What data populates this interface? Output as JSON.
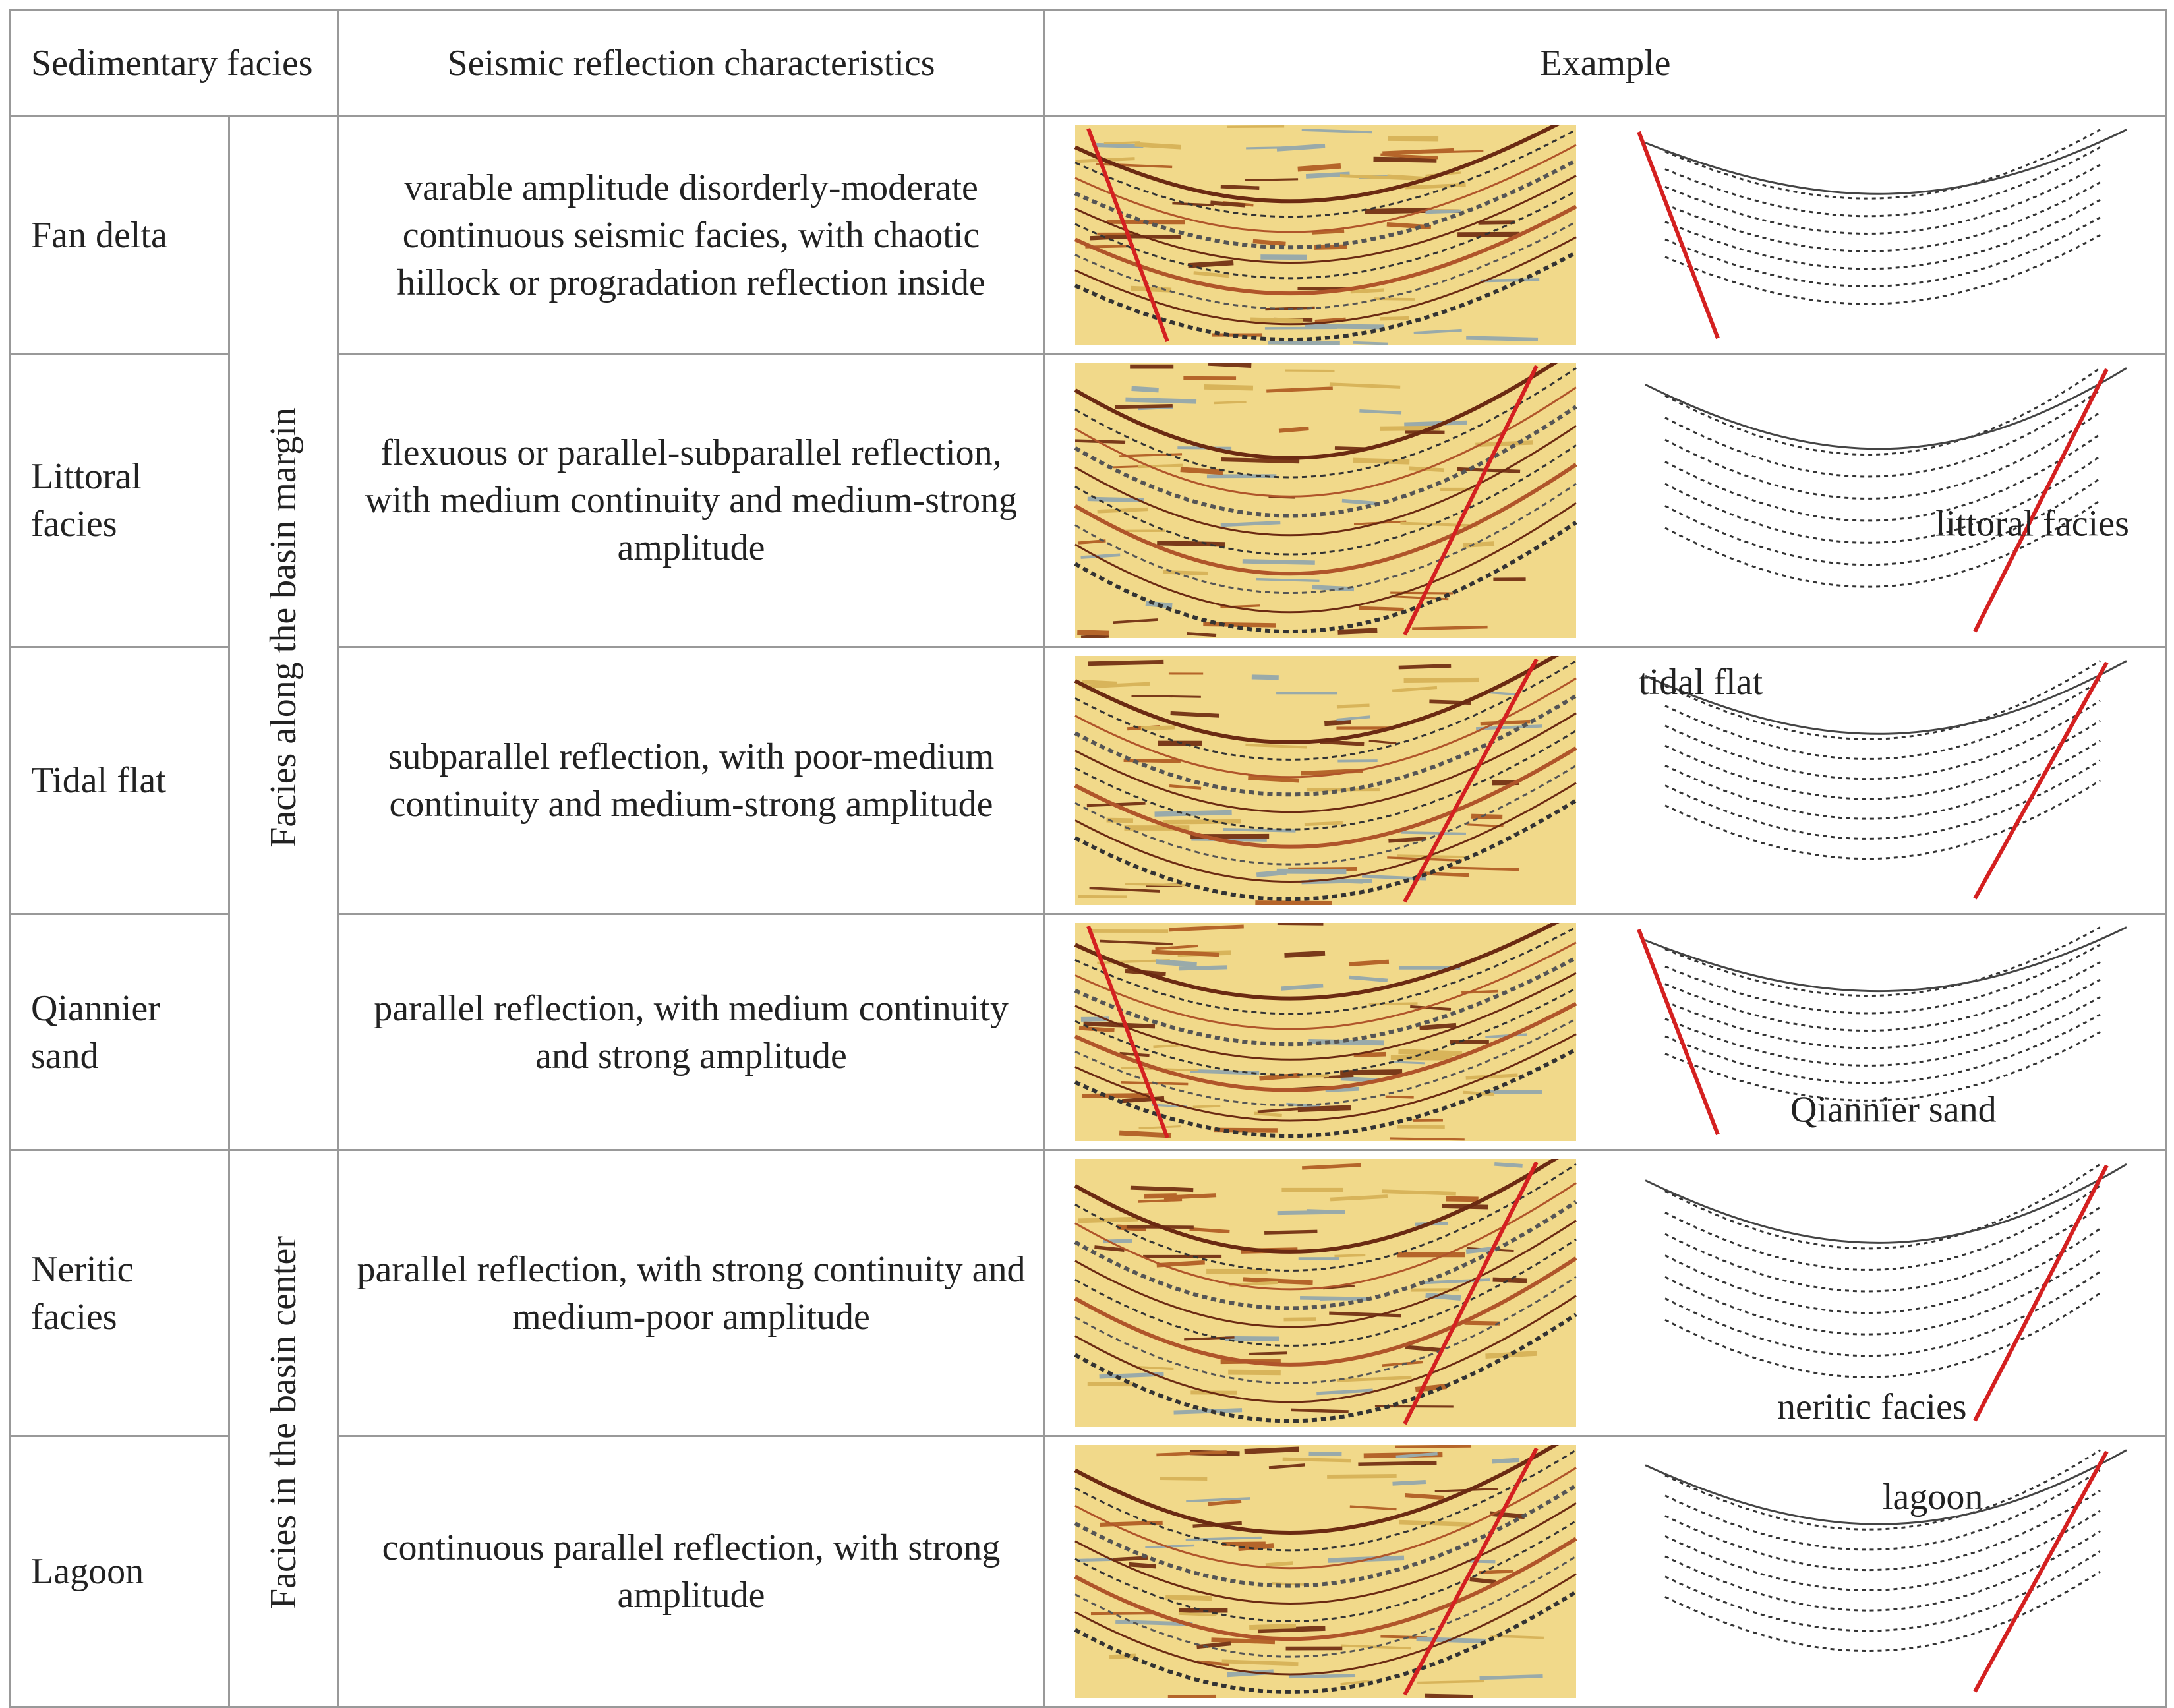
{
  "table": {
    "headers": [
      "Sedimentary facies",
      "Seismic reflection characteristics",
      "Example"
    ],
    "groups": [
      "Facies along the basin margin",
      "Facies in the basin center"
    ],
    "rows": [
      {
        "facies": "Fan delta",
        "characteristics": "varable amplitude disorderly-moderate continuous seismic facies, with chaotic hillock or progradation reflection inside"
      },
      {
        "facies": "Littoral facies",
        "characteristics": "flexuous or parallel-subparallel reflection, with medium continuity and medium-strong amplitude",
        "annotation": "littoral facies"
      },
      {
        "facies": "Tidal flat",
        "characteristics": "subparallel reflection, with poor-medium continuity and medium-strong amplitude",
        "annotation": "tidal flat"
      },
      {
        "facies": "Qiannier sand",
        "characteristics": "parallel reflection, with medium continuity and strong amplitude",
        "annotation": "Qiannier sand"
      },
      {
        "facies": "Neritic facies",
        "characteristics": "parallel reflection, with strong continuity and medium-poor amplitude",
        "annotation": "neritic  facies"
      },
      {
        "facies": "Lagoon",
        "characteristics": "continuous parallel reflection, with strong amplitude",
        "annotation": "lagoon"
      }
    ]
  }
}
